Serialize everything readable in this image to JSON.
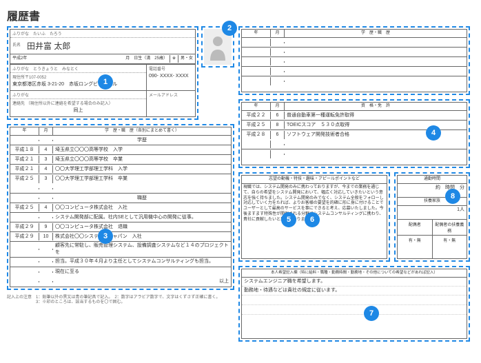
{
  "title": "履歴書",
  "badge_color": "#1e88e5",
  "border_dash_color": "#1e88e5",
  "personal": {
    "furigana_label": "ふりがな",
    "furigana": "たいふ　たろう",
    "name_label": "氏名",
    "name": "田井富 太郎",
    "date_prefix": "平成2年",
    "birth_suffix": "月　日生（満　25歳）",
    "gender_options": "男・女",
    "addr_furigana_label": "ふりがな",
    "addr_furigana": "とうきょうと　みなとく",
    "addr_label": "現住所〒107-0052",
    "address": "東京都港区赤坂 3-21-20　赤坂ロングビーチビル",
    "phone_label": "電話番号",
    "phone": "090- XXXX- XXXX",
    "contact_furigana_label": "ふりがな",
    "mail_label": "メールアドレス",
    "contact_label": "連絡先",
    "contact_note": "（現住所以外に連絡を希望する場合のみ記入）",
    "contact": "同上"
  },
  "education": {
    "header_year": "年",
    "header_month": "月",
    "header_title": "学　歴・職　歴（各別にまとめて書く）",
    "gakureki_label": "学歴",
    "shokureki_label": "職歴",
    "ijou": "以上",
    "rows": [
      {
        "y": "平成１８",
        "m": "4",
        "t": "埼玉県立〇〇〇高等学校　入学"
      },
      {
        "y": "平成２１",
        "m": "3",
        "t": "埼玉県立〇〇〇高等学校　卒業"
      },
      {
        "y": "平成２１",
        "m": "4",
        "t": "〇〇大学理工学部理工学科　入学"
      },
      {
        "y": "平成２５",
        "m": "3",
        "t": "〇〇大学理工学部理工学科　卒業"
      }
    ],
    "work_rows": [
      {
        "y": "平成２５",
        "m": "4",
        "t": "〇〇コンピュータ株式会社　入社"
      },
      {
        "y": "",
        "m": "",
        "t": "システム開発部に配属。社内SEとして汎用機中心の開発に従事。"
      },
      {
        "y": "平成２９",
        "m": "9",
        "t": "〇〇コンピュータ株式会社　退職"
      },
      {
        "y": "平成２９",
        "m": "10",
        "t": "株式会社〇〇システム・ジャパン　入社"
      },
      {
        "y": "",
        "m": "",
        "t": "顧客先に常駐し、販売管理システム、設備調査システムなど１４のプロジェクトを"
      },
      {
        "y": "",
        "m": "",
        "t": "担当。平成３０年４月より主任としてシステムコンサルティングも担当。"
      },
      {
        "y": "",
        "m": "",
        "t": "現在に至る"
      }
    ]
  },
  "edu2": {
    "header_year": "年",
    "header_month": "月",
    "header_title": "学　歴・職　歴"
  },
  "license": {
    "header_year": "年",
    "header_month": "月",
    "header_title": "資　格・免　許",
    "rows": [
      {
        "y": "平成２２",
        "m": "6",
        "t": "普通自動車第一種運転免許取得"
      },
      {
        "y": "平成２５",
        "m": "8",
        "t": "TOEICスコア　５３０点取得"
      },
      {
        "y": "平成２８",
        "m": "6",
        "t": "ソフトウェア開発技術者合格"
      }
    ]
  },
  "motive": {
    "header": "志望の動機・特技・趣味・アピールポイントなど",
    "text": "現職では、システム開発のみに携わっておりますが、今までの業務を通じて、自らの希望をシステム開発において、幅広く対応していきたいという意志を強く持ちました。システム開発のみでなく、システム全般をフォローし対応していく力をたれば、よりお客様の要望を的確に形に身に付けることでユーザーとして最高のサービスを事にできると考え、応募いたしました。今後ますます特殊性が開催される分野でシステムコンサルティングに携わり、貴社に貢献したいと思っております。"
  },
  "commute": {
    "header": "通勤時間",
    "time_label": "約　時間　分",
    "dependents_label": "扶養家族",
    "dependents_val": "1",
    "spouse_label": "配偶者",
    "spouse_support_label": "配偶者の扶養義務",
    "spouse_val": "有・無",
    "spouse_support_val": "有・無"
  },
  "wishes": {
    "header": "本人希望記入欄（特に給料・職種・勤務時間・勤務地・その他についての希望などがあれば記入）",
    "line1": "システムエンジニア職を希望します。",
    "line2": "勤務地・待遇などは貴社の規定に従います。"
  },
  "footnotes": {
    "l1": "記入上の注意　1：鉛筆以外の黒又は青の筆記具で記入。　2：数字はアラビア数字で、文字はくずさず正確に書く。",
    "l2": "　　　　　　　3：※印のところは、該当するものを〇で囲む。"
  },
  "badges": {
    "b1": "1",
    "b2": "2",
    "b3": "3",
    "b4": "4",
    "b5": "5",
    "b6": "6",
    "b7": "7",
    "b8": "8"
  }
}
